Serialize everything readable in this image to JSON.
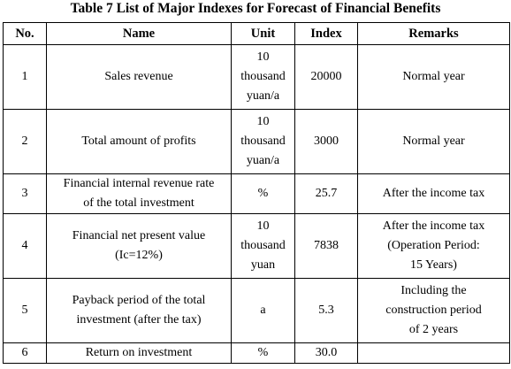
{
  "title": "Table 7 List of Major Indexes for Forecast of Financial Benefits",
  "headers": {
    "no": "No.",
    "name": "Name",
    "unit": "Unit",
    "index": "Index",
    "remarks": "Remarks"
  },
  "rows": [
    {
      "no": "1",
      "name": [
        "Sales revenue"
      ],
      "unit": [
        "10",
        "thousand",
        "yuan/a"
      ],
      "index": "20000",
      "remarks": [
        "Normal year"
      ]
    },
    {
      "no": "2",
      "name": [
        "Total amount of profits"
      ],
      "unit": [
        "10",
        "thousand",
        "yuan/a"
      ],
      "index": "3000",
      "remarks": [
        "Normal year"
      ]
    },
    {
      "no": "3",
      "name": [
        "Financial internal revenue rate",
        "of the total investment"
      ],
      "unit": [
        "%"
      ],
      "index": "25.7",
      "remarks": [
        "After the income tax"
      ]
    },
    {
      "no": "4",
      "name": [
        "Financial net present value",
        "(Ic=12%)"
      ],
      "unit": [
        "10",
        "thousand",
        "yuan"
      ],
      "index": "7838",
      "remarks": [
        "After the income tax",
        "(Operation Period:",
        "15 Years)"
      ]
    },
    {
      "no": "5",
      "name": [
        "Payback period of the total",
        "investment (after the tax)"
      ],
      "unit": [
        "a"
      ],
      "index": "5.3",
      "remarks": [
        "Including the",
        "construction period",
        "of 2 years"
      ]
    },
    {
      "no": "6",
      "name": [
        "Return on investment"
      ],
      "unit": [
        "%"
      ],
      "index": "30.0",
      "remarks": [
        ""
      ]
    }
  ]
}
